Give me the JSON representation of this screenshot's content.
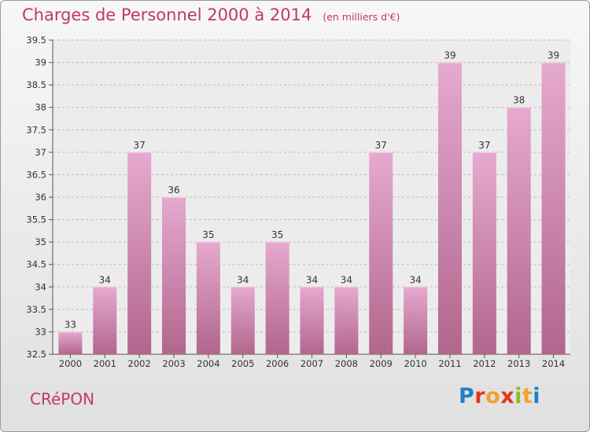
{
  "header": {
    "title": "Charges de Personnel 2000 à 2014",
    "unit": "(en milliers d'€)"
  },
  "footer": {
    "commune": "CRéPON",
    "logo_letters": [
      "P",
      "r",
      "o",
      "x",
      "i",
      "t",
      "i"
    ],
    "logo_colors": [
      "#1d7fc4",
      "#e8341c",
      "#f2a12d",
      "#e8341c",
      "#8bbd2a",
      "#f2a12d",
      "#1d7fc4"
    ]
  },
  "colors": {
    "bar_top": "#e6a9cf",
    "bar_bottom": "#b1668d",
    "title": "#c0386e",
    "grid": "#bbbbbb"
  },
  "chart_data": {
    "type": "bar",
    "title": "Charges de Personnel 2000 à 2014",
    "subtitle": "(en milliers d'€)",
    "categories": [
      "2000",
      "2001",
      "2002",
      "2003",
      "2004",
      "2005",
      "2006",
      "2007",
      "2008",
      "2009",
      "2010",
      "2011",
      "2012",
      "2013",
      "2014"
    ],
    "values": [
      33,
      34,
      37,
      36,
      35,
      34,
      35,
      34,
      34,
      37,
      34,
      39,
      37,
      38,
      39
    ],
    "data_labels": [
      "33",
      "34",
      "37",
      "36",
      "35",
      "34",
      "35",
      "34",
      "34",
      "37",
      "34",
      "39",
      "37",
      "38",
      "39"
    ],
    "ylim": [
      32.5,
      39.5
    ],
    "yticks": [
      "32.5",
      "33",
      "33.5",
      "34",
      "34.5",
      "35",
      "35.5",
      "36",
      "36.5",
      "37",
      "37.5",
      "38",
      "38.5",
      "39",
      "39.5"
    ],
    "grid": true,
    "legend": "none"
  }
}
